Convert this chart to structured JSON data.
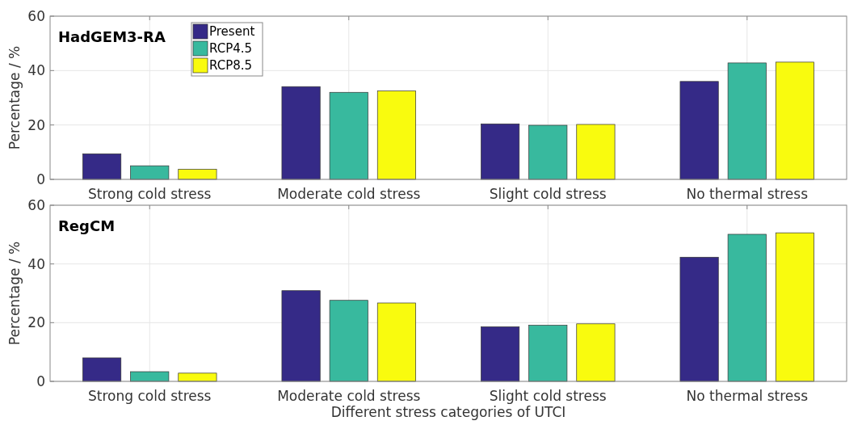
{
  "chart_data": [
    {
      "type": "bar",
      "title": "HadGEM3-RA",
      "ylabel": "Percentage / %",
      "categories": [
        "Strong cold stress",
        "Moderate cold stress",
        "Slight cold stress",
        "No thermal stress"
      ],
      "series": [
        {
          "name": "Present",
          "color": "#352a87",
          "values": [
            9.4,
            34.1,
            20.4,
            36.0
          ]
        },
        {
          "name": "RCP4.5",
          "color": "#38b99e",
          "values": [
            5.0,
            32.0,
            19.9,
            42.8
          ]
        },
        {
          "name": "RCP8.5",
          "color": "#f9fb0e",
          "values": [
            3.7,
            32.5,
            20.2,
            43.1
          ]
        }
      ],
      "ylim": [
        0,
        60
      ],
      "yticks": [
        0,
        20,
        40,
        60
      ],
      "grid": true,
      "legend": "top left"
    },
    {
      "type": "bar",
      "title": "RegCM",
      "ylabel": "Percentage / %",
      "xlabel": "Different stress categories of UTCI",
      "categories": [
        "Strong cold stress",
        "Moderate cold stress",
        "Slight cold stress",
        "No thermal stress"
      ],
      "series": [
        {
          "color": "#352a87",
          "values": [
            8.0,
            30.9,
            18.6,
            42.3
          ]
        },
        {
          "color": "#38b99e",
          "values": [
            3.3,
            27.6,
            19.1,
            50.1
          ]
        },
        {
          "color": "#f9fb0e",
          "values": [
            2.8,
            26.7,
            19.6,
            50.6
          ]
        }
      ],
      "ylim": [
        0,
        60
      ],
      "yticks": [
        0,
        20,
        40,
        60
      ],
      "grid": true
    }
  ]
}
